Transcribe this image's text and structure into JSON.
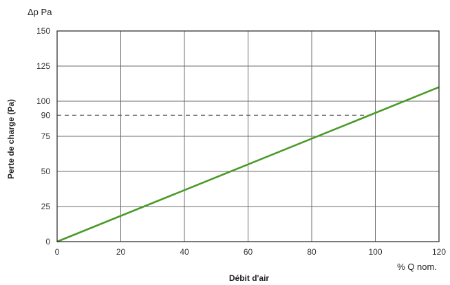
{
  "chart_data": {
    "type": "line",
    "title": "",
    "xlabel": "Débit d'air",
    "ylabel": "Perte de charge (Pa)",
    "x_unit_label": "% Q nom.",
    "y_unit_label": "Δp Pa",
    "xlim": [
      0,
      120
    ],
    "ylim": [
      0,
      150
    ],
    "x_ticks": [
      0,
      20,
      40,
      60,
      80,
      100,
      120
    ],
    "y_ticks": [
      0,
      25,
      50,
      75,
      90,
      100,
      125,
      150
    ],
    "grid": true,
    "series": [
      {
        "x": [
          0,
          120
        ],
        "y": [
          0,
          110
        ],
        "color": "#4a9a2a",
        "style": "solid"
      }
    ],
    "reference_lines": [
      {
        "axis": "y",
        "value": 90,
        "x_from": 0,
        "x_to": 100,
        "style": "dashed",
        "color": "#555555"
      }
    ]
  }
}
